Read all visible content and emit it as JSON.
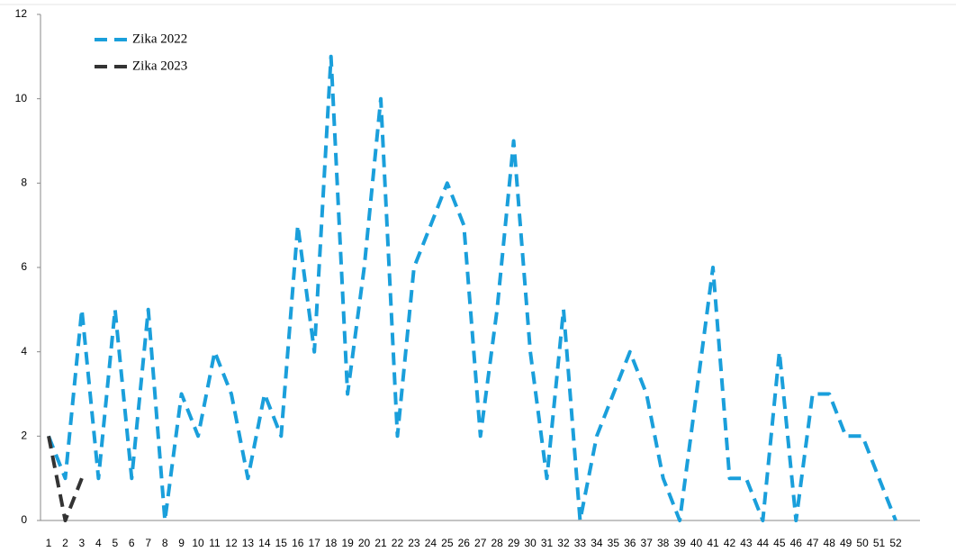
{
  "chart_data": {
    "type": "line",
    "categories": [
      "1",
      "2",
      "3",
      "4",
      "5",
      "6",
      "7",
      "8",
      "9",
      "10",
      "11",
      "12",
      "13",
      "14",
      "15",
      "16",
      "17",
      "18",
      "19",
      "20",
      "21",
      "22",
      "23",
      "24",
      "25",
      "26",
      "27",
      "28",
      "29",
      "30",
      "31",
      "32",
      "33",
      "34",
      "35",
      "36",
      "37",
      "38",
      "39",
      "40",
      "41",
      "42",
      "43",
      "44",
      "45",
      "46",
      "47",
      "48",
      "49",
      "50",
      "51",
      "52"
    ],
    "series": [
      {
        "name": "Zika 2022",
        "color": "#1a9fdb",
        "values": [
          2,
          1,
          5,
          1,
          5,
          1,
          5,
          0,
          3,
          2,
          4,
          3,
          1,
          3,
          2,
          7,
          4,
          11,
          3,
          6,
          10,
          2,
          6,
          7,
          8,
          7,
          2,
          5,
          9,
          4,
          1,
          5,
          0,
          2,
          3,
          4,
          3,
          1,
          0,
          3,
          6,
          1,
          1,
          0,
          4,
          0,
          3,
          3,
          2,
          2,
          1,
          0
        ]
      },
      {
        "name": "Zika 2023",
        "color": "#333333",
        "values": [
          2,
          0,
          1,
          null,
          null,
          null,
          null,
          null,
          null,
          null,
          null,
          null,
          null,
          null,
          null,
          null,
          null,
          null,
          null,
          null,
          null,
          null,
          null,
          null,
          null,
          null,
          null,
          null,
          null,
          null,
          null,
          null,
          null,
          null,
          null,
          null,
          null,
          null,
          null,
          null,
          null,
          null,
          null,
          null,
          null,
          null,
          null,
          null,
          null,
          null,
          null,
          null
        ]
      }
    ],
    "ylim": [
      0,
      12
    ],
    "yticks": [
      0,
      2,
      4,
      6,
      8,
      10,
      12
    ],
    "grid": false,
    "legend": "top-left"
  }
}
